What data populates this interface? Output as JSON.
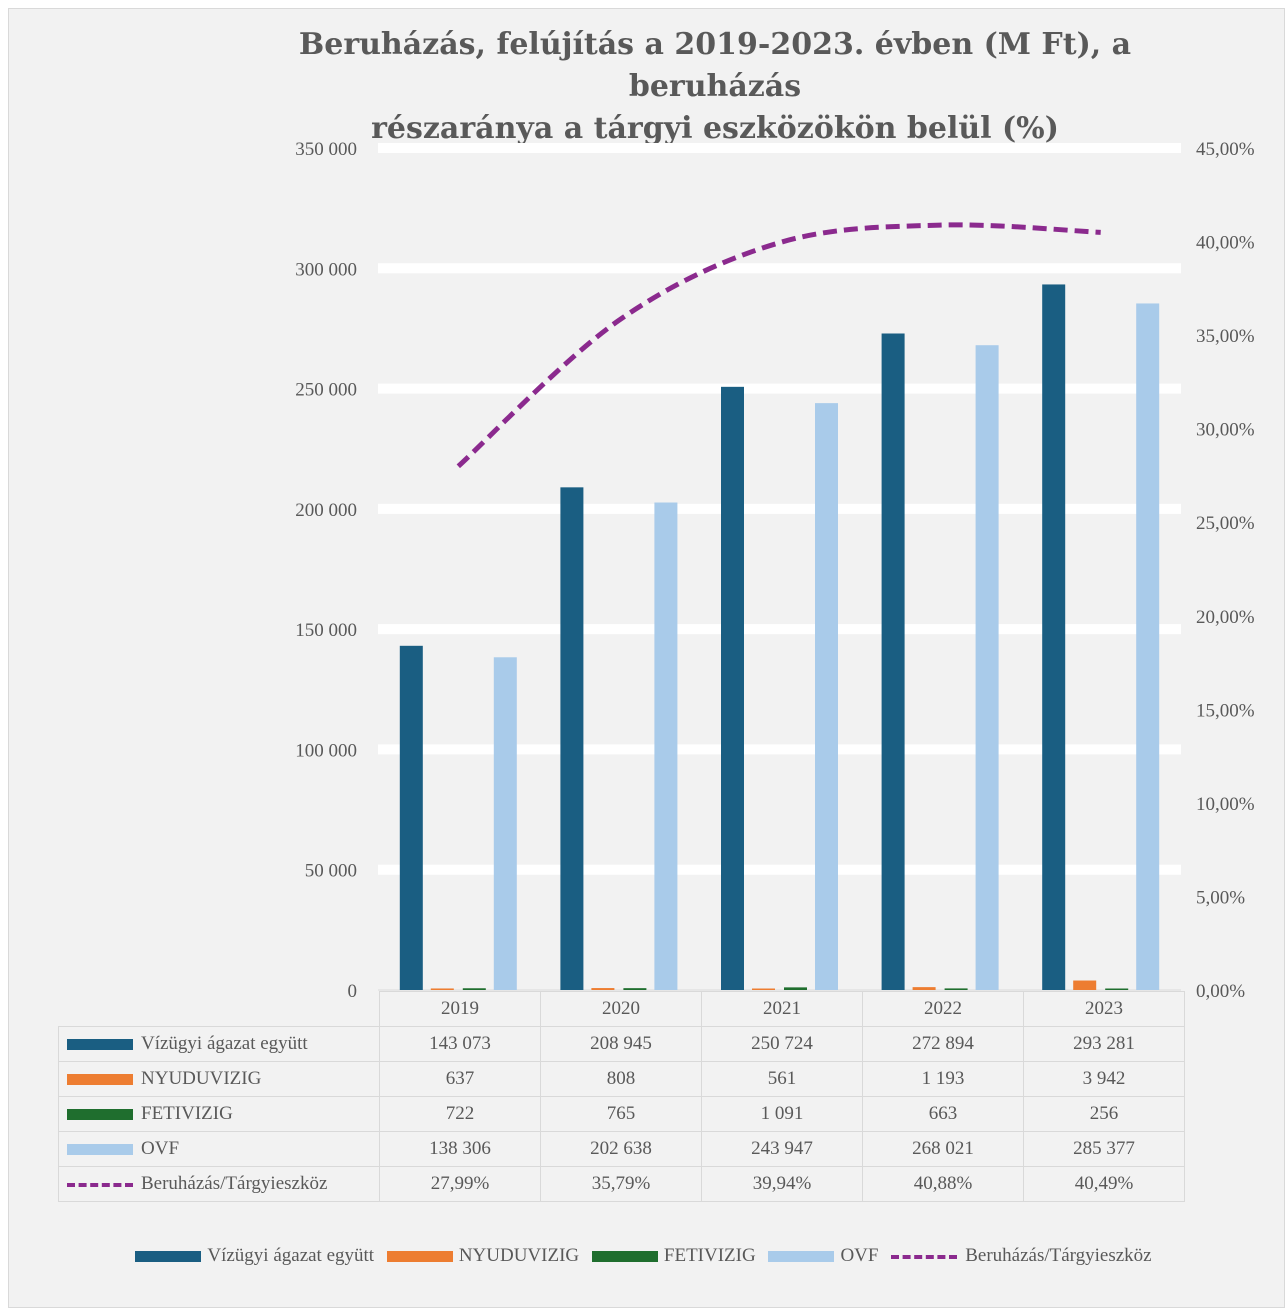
{
  "chart_data": {
    "type": "bar",
    "title": [
      "Beruházás, felújítás a 2019-2023. évben (M Ft), a beruházás",
      "részaránya a tárgyi eszközökön belül (%)"
    ],
    "categories": [
      "2019",
      "2020",
      "2021",
      "2022",
      "2023"
    ],
    "series": [
      {
        "name": "Vízügyi ágazat együtt",
        "type": "bar",
        "axis": "left",
        "color": "#1a5e82",
        "values": [
          143073,
          208945,
          250724,
          272894,
          293281
        ],
        "labels": [
          "143 073",
          "208 945",
          "250 724",
          "272 894",
          "293 281"
        ]
      },
      {
        "name": "NYUDUVIZIG",
        "type": "bar",
        "axis": "left",
        "color": "#ed7d31",
        "values": [
          637,
          808,
          561,
          1193,
          3942
        ],
        "labels": [
          "637",
          "808",
          "561",
          "1 193",
          "3 942"
        ]
      },
      {
        "name": "FETIVIZIG",
        "type": "bar",
        "axis": "left",
        "color": "#1f6e2e",
        "values": [
          722,
          765,
          1091,
          663,
          256
        ],
        "labels": [
          "722",
          "765",
          "1 091",
          "663",
          "256"
        ]
      },
      {
        "name": "OVF",
        "type": "bar",
        "axis": "left",
        "color": "#a9cbea",
        "values": [
          138306,
          202638,
          243947,
          268021,
          285377
        ],
        "labels": [
          "138 306",
          "202 638",
          "243 947",
          "268 021",
          "285 377"
        ]
      },
      {
        "name": "Beruházás/Tárgyieszköz",
        "type": "line",
        "axis": "right",
        "color": "#8b2a8e",
        "dashed": true,
        "values": [
          27.99,
          35.79,
          39.94,
          40.88,
          40.49
        ],
        "labels": [
          "27,99%",
          "35,79%",
          "39,94%",
          "40,88%",
          "40,49%"
        ]
      }
    ],
    "ylim": [
      0,
      350000
    ],
    "ylim_right": [
      0,
      45
    ],
    "y_ticks": [
      "0",
      "50 000",
      "100 000",
      "150 000",
      "200 000",
      "250 000",
      "300 000",
      "350 000"
    ],
    "y_ticks_right": [
      "0,00%",
      "5,00%",
      "10,00%",
      "15,00%",
      "20,00%",
      "25,00%",
      "30,00%",
      "35,00%",
      "40,00%",
      "45,00%"
    ],
    "grid": true,
    "legend": "bottom",
    "data_table": true
  }
}
